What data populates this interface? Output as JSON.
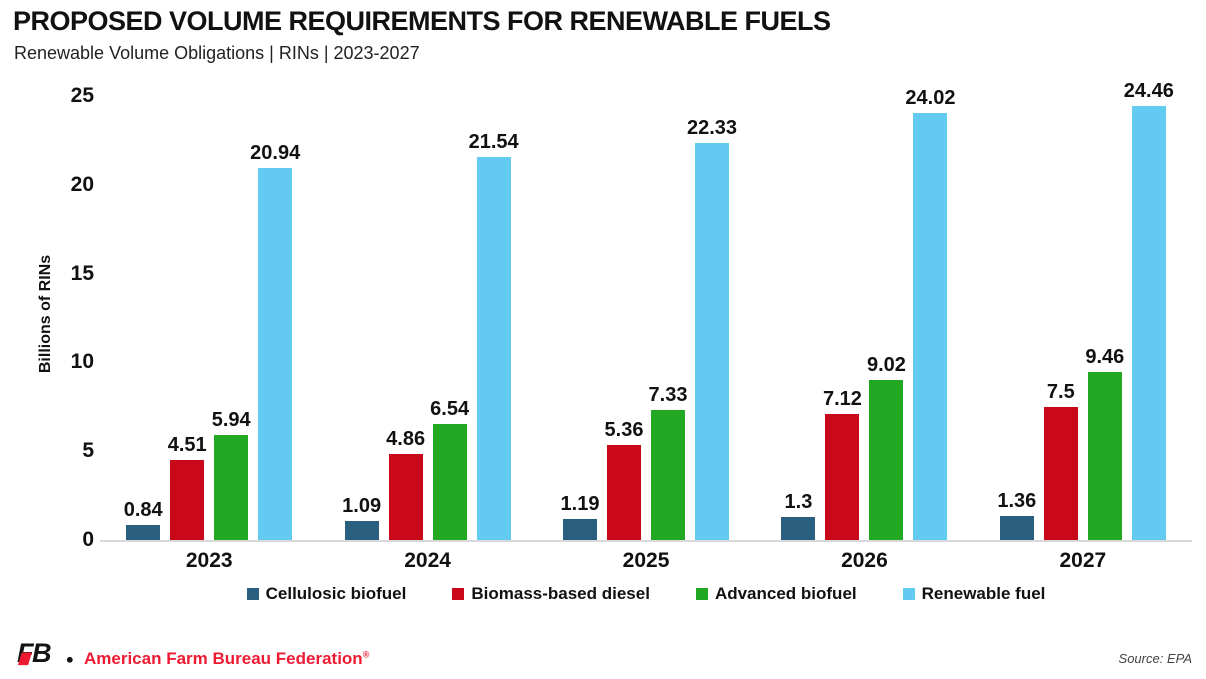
{
  "header": {
    "title": "PROPOSED VOLUME REQUIREMENTS FOR RENEWABLE FUELS",
    "subtitle": "Renewable Volume Obligations | RINs | 2023-2027"
  },
  "chart_data": {
    "type": "bar",
    "title": "PROPOSED VOLUME REQUIREMENTS FOR RENEWABLE FUELS",
    "subtitle": "Renewable Volume Obligations | RINs | 2023-2027",
    "categories": [
      "2023",
      "2024",
      "2025",
      "2026",
      "2027"
    ],
    "series": [
      {
        "name": "Cellulosic biofuel",
        "color": "#2b5f7f",
        "values": [
          0.84,
          1.09,
          1.19,
          1.3,
          1.36
        ],
        "labels": [
          "0.84",
          "1.09",
          "1.19",
          "1.3",
          "1.36"
        ]
      },
      {
        "name": "Biomass-based diesel",
        "color": "#c9081a",
        "values": [
          4.51,
          4.86,
          5.36,
          7.12,
          7.5
        ],
        "labels": [
          "4.51",
          "4.86",
          "5.36",
          "7.12",
          "7.5"
        ]
      },
      {
        "name": "Advanced biofuel",
        "color": "#23a823",
        "values": [
          5.94,
          6.54,
          7.33,
          9.02,
          9.46
        ],
        "labels": [
          "5.94",
          "6.54",
          "7.33",
          "9.02",
          "9.46"
        ]
      },
      {
        "name": "Renewable fuel",
        "color": "#63cbf2",
        "values": [
          20.94,
          21.54,
          22.33,
          24.02,
          24.46
        ],
        "labels": [
          "20.94",
          "21.54",
          "22.33",
          "24.02",
          "24.46"
        ]
      }
    ],
    "xlabel": "",
    "ylabel": "Billions of RINs",
    "yticks": [
      0,
      5,
      10,
      15,
      20,
      25
    ],
    "ylim": [
      0,
      25
    ],
    "grid": false,
    "legend_position": "bottom"
  },
  "footer": {
    "logo_text": "FB.",
    "brand": "American Farm Bureau Federation",
    "trademark": "®",
    "source": "Source: EPA"
  },
  "colors": {
    "cellulosic": "#2b5f7f",
    "biomass": "#c9081a",
    "advanced": "#23a823",
    "renewable": "#63cbf2",
    "brand_red": "#ed1a33",
    "axis_line": "#d9d9d9",
    "text": "#111111"
  }
}
